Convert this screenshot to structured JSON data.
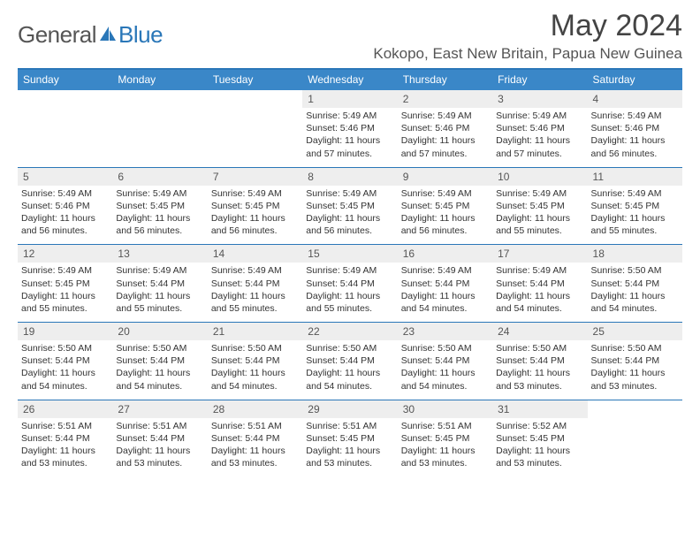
{
  "brand": {
    "word1": "General",
    "word2": "Blue"
  },
  "colors": {
    "accent": "#2a77b8",
    "header_bg": "#3a87c8",
    "daynum_bg": "#eeeeee",
    "text": "#333333"
  },
  "title": "May 2024",
  "location": "Kokopo, East New Britain, Papua New Guinea",
  "weekdays": [
    "Sunday",
    "Monday",
    "Tuesday",
    "Wednesday",
    "Thursday",
    "Friday",
    "Saturday"
  ],
  "weeks": [
    [
      {
        "n": "",
        "l1": "",
        "l2": "",
        "l3": "",
        "l4": ""
      },
      {
        "n": "",
        "l1": "",
        "l2": "",
        "l3": "",
        "l4": ""
      },
      {
        "n": "",
        "l1": "",
        "l2": "",
        "l3": "",
        "l4": ""
      },
      {
        "n": "1",
        "l1": "Sunrise: 5:49 AM",
        "l2": "Sunset: 5:46 PM",
        "l3": "Daylight: 11 hours",
        "l4": "and 57 minutes."
      },
      {
        "n": "2",
        "l1": "Sunrise: 5:49 AM",
        "l2": "Sunset: 5:46 PM",
        "l3": "Daylight: 11 hours",
        "l4": "and 57 minutes."
      },
      {
        "n": "3",
        "l1": "Sunrise: 5:49 AM",
        "l2": "Sunset: 5:46 PM",
        "l3": "Daylight: 11 hours",
        "l4": "and 57 minutes."
      },
      {
        "n": "4",
        "l1": "Sunrise: 5:49 AM",
        "l2": "Sunset: 5:46 PM",
        "l3": "Daylight: 11 hours",
        "l4": "and 56 minutes."
      }
    ],
    [
      {
        "n": "5",
        "l1": "Sunrise: 5:49 AM",
        "l2": "Sunset: 5:46 PM",
        "l3": "Daylight: 11 hours",
        "l4": "and 56 minutes."
      },
      {
        "n": "6",
        "l1": "Sunrise: 5:49 AM",
        "l2": "Sunset: 5:45 PM",
        "l3": "Daylight: 11 hours",
        "l4": "and 56 minutes."
      },
      {
        "n": "7",
        "l1": "Sunrise: 5:49 AM",
        "l2": "Sunset: 5:45 PM",
        "l3": "Daylight: 11 hours",
        "l4": "and 56 minutes."
      },
      {
        "n": "8",
        "l1": "Sunrise: 5:49 AM",
        "l2": "Sunset: 5:45 PM",
        "l3": "Daylight: 11 hours",
        "l4": "and 56 minutes."
      },
      {
        "n": "9",
        "l1": "Sunrise: 5:49 AM",
        "l2": "Sunset: 5:45 PM",
        "l3": "Daylight: 11 hours",
        "l4": "and 56 minutes."
      },
      {
        "n": "10",
        "l1": "Sunrise: 5:49 AM",
        "l2": "Sunset: 5:45 PM",
        "l3": "Daylight: 11 hours",
        "l4": "and 55 minutes."
      },
      {
        "n": "11",
        "l1": "Sunrise: 5:49 AM",
        "l2": "Sunset: 5:45 PM",
        "l3": "Daylight: 11 hours",
        "l4": "and 55 minutes."
      }
    ],
    [
      {
        "n": "12",
        "l1": "Sunrise: 5:49 AM",
        "l2": "Sunset: 5:45 PM",
        "l3": "Daylight: 11 hours",
        "l4": "and 55 minutes."
      },
      {
        "n": "13",
        "l1": "Sunrise: 5:49 AM",
        "l2": "Sunset: 5:44 PM",
        "l3": "Daylight: 11 hours",
        "l4": "and 55 minutes."
      },
      {
        "n": "14",
        "l1": "Sunrise: 5:49 AM",
        "l2": "Sunset: 5:44 PM",
        "l3": "Daylight: 11 hours",
        "l4": "and 55 minutes."
      },
      {
        "n": "15",
        "l1": "Sunrise: 5:49 AM",
        "l2": "Sunset: 5:44 PM",
        "l3": "Daylight: 11 hours",
        "l4": "and 55 minutes."
      },
      {
        "n": "16",
        "l1": "Sunrise: 5:49 AM",
        "l2": "Sunset: 5:44 PM",
        "l3": "Daylight: 11 hours",
        "l4": "and 54 minutes."
      },
      {
        "n": "17",
        "l1": "Sunrise: 5:49 AM",
        "l2": "Sunset: 5:44 PM",
        "l3": "Daylight: 11 hours",
        "l4": "and 54 minutes."
      },
      {
        "n": "18",
        "l1": "Sunrise: 5:50 AM",
        "l2": "Sunset: 5:44 PM",
        "l3": "Daylight: 11 hours",
        "l4": "and 54 minutes."
      }
    ],
    [
      {
        "n": "19",
        "l1": "Sunrise: 5:50 AM",
        "l2": "Sunset: 5:44 PM",
        "l3": "Daylight: 11 hours",
        "l4": "and 54 minutes."
      },
      {
        "n": "20",
        "l1": "Sunrise: 5:50 AM",
        "l2": "Sunset: 5:44 PM",
        "l3": "Daylight: 11 hours",
        "l4": "and 54 minutes."
      },
      {
        "n": "21",
        "l1": "Sunrise: 5:50 AM",
        "l2": "Sunset: 5:44 PM",
        "l3": "Daylight: 11 hours",
        "l4": "and 54 minutes."
      },
      {
        "n": "22",
        "l1": "Sunrise: 5:50 AM",
        "l2": "Sunset: 5:44 PM",
        "l3": "Daylight: 11 hours",
        "l4": "and 54 minutes."
      },
      {
        "n": "23",
        "l1": "Sunrise: 5:50 AM",
        "l2": "Sunset: 5:44 PM",
        "l3": "Daylight: 11 hours",
        "l4": "and 54 minutes."
      },
      {
        "n": "24",
        "l1": "Sunrise: 5:50 AM",
        "l2": "Sunset: 5:44 PM",
        "l3": "Daylight: 11 hours",
        "l4": "and 53 minutes."
      },
      {
        "n": "25",
        "l1": "Sunrise: 5:50 AM",
        "l2": "Sunset: 5:44 PM",
        "l3": "Daylight: 11 hours",
        "l4": "and 53 minutes."
      }
    ],
    [
      {
        "n": "26",
        "l1": "Sunrise: 5:51 AM",
        "l2": "Sunset: 5:44 PM",
        "l3": "Daylight: 11 hours",
        "l4": "and 53 minutes."
      },
      {
        "n": "27",
        "l1": "Sunrise: 5:51 AM",
        "l2": "Sunset: 5:44 PM",
        "l3": "Daylight: 11 hours",
        "l4": "and 53 minutes."
      },
      {
        "n": "28",
        "l1": "Sunrise: 5:51 AM",
        "l2": "Sunset: 5:44 PM",
        "l3": "Daylight: 11 hours",
        "l4": "and 53 minutes."
      },
      {
        "n": "29",
        "l1": "Sunrise: 5:51 AM",
        "l2": "Sunset: 5:45 PM",
        "l3": "Daylight: 11 hours",
        "l4": "and 53 minutes."
      },
      {
        "n": "30",
        "l1": "Sunrise: 5:51 AM",
        "l2": "Sunset: 5:45 PM",
        "l3": "Daylight: 11 hours",
        "l4": "and 53 minutes."
      },
      {
        "n": "31",
        "l1": "Sunrise: 5:52 AM",
        "l2": "Sunset: 5:45 PM",
        "l3": "Daylight: 11 hours",
        "l4": "and 53 minutes."
      },
      {
        "n": "",
        "l1": "",
        "l2": "",
        "l3": "",
        "l4": ""
      }
    ]
  ]
}
